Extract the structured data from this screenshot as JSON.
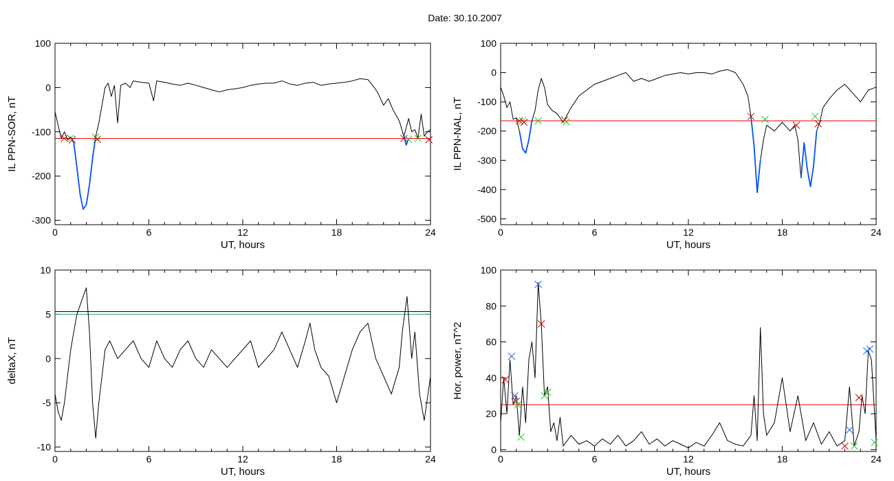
{
  "figure": {
    "title": "Date:  30.10.2007"
  },
  "chart_data": [
    {
      "id": "ppn-sor",
      "type": "line",
      "xlabel": "UT, hours",
      "ylabel": "IL PPN-SOR, nT",
      "xlim": [
        0,
        24
      ],
      "ylim": [
        -310,
        100
      ],
      "xticks": [
        0,
        6,
        12,
        18,
        24
      ],
      "yticks": [
        100,
        0,
        -100,
        -200,
        -300
      ],
      "threshold": {
        "value": -115,
        "color": "#ee0000"
      },
      "series": [
        {
          "color": "#000000",
          "x": [
            0,
            0.2,
            0.4,
            0.6,
            0.8,
            1.0,
            1.2,
            1.4,
            1.6,
            1.8,
            2.0,
            2.2,
            2.4,
            2.6,
            2.8,
            3.0,
            3.2,
            3.4,
            3.6,
            3.8,
            4.0,
            4.2,
            4.5,
            4.8,
            5.0,
            5.5,
            6.0,
            6.3,
            6.5,
            7.0,
            7.5,
            8.0,
            8.5,
            9.0,
            9.5,
            10.0,
            10.5,
            11.0,
            11.5,
            12.0,
            12.5,
            13.0,
            13.5,
            14.0,
            14.5,
            15.0,
            15.5,
            16.0,
            16.5,
            17.0,
            17.5,
            18.0,
            18.5,
            19.0,
            19.5,
            20.0,
            20.3,
            20.6,
            21.0,
            21.3,
            21.6,
            22.0,
            22.3,
            22.6,
            22.8,
            23.0,
            23.2,
            23.4,
            23.6,
            23.8,
            24.0
          ],
          "y": [
            -55,
            -85,
            -115,
            -100,
            -118,
            -112,
            -125,
            -180,
            -240,
            -275,
            -265,
            -220,
            -160,
            -110,
            -80,
            -40,
            0,
            10,
            -20,
            5,
            -80,
            5,
            10,
            0,
            15,
            12,
            10,
            -30,
            15,
            12,
            8,
            5,
            10,
            5,
            0,
            -5,
            -10,
            -5,
            -3,
            0,
            5,
            8,
            10,
            10,
            15,
            8,
            5,
            10,
            12,
            5,
            8,
            10,
            12,
            15,
            20,
            18,
            5,
            -10,
            -40,
            -25,
            -50,
            -75,
            -110,
            -70,
            -100,
            -95,
            -115,
            -60,
            -110,
            -100,
            -95
          ]
        },
        {
          "color": "#0050ff",
          "segments": [
            {
              "x": [
                1.0,
                1.2,
                1.4,
                1.6,
                1.8,
                2.0,
                2.2,
                2.4,
                2.6
              ],
              "y": [
                -112,
                -125,
                -180,
                -240,
                -275,
                -265,
                -220,
                -160,
                -110
              ]
            },
            {
              "x": [
                22.3,
                22.45,
                22.6
              ],
              "y": [
                -110,
                -130,
                -115
              ]
            }
          ]
        }
      ],
      "markers": [
        {
          "x": 0.6,
          "y": -115,
          "color": "#cc0000"
        },
        {
          "x": 1.0,
          "y": -115,
          "color": "#22cc22"
        },
        {
          "x": 1.1,
          "y": -118,
          "color": "#cc0000"
        },
        {
          "x": 2.6,
          "y": -112,
          "color": "#22cc22"
        },
        {
          "x": 2.7,
          "y": -117,
          "color": "#cc0000"
        },
        {
          "x": 22.3,
          "y": -115,
          "color": "#cc0000"
        },
        {
          "x": 22.6,
          "y": -117,
          "color": "#22cc22"
        },
        {
          "x": 23.2,
          "y": -115,
          "color": "#22cc22"
        },
        {
          "x": 23.9,
          "y": -118,
          "color": "#cc0000"
        }
      ]
    },
    {
      "id": "ppn-nal",
      "type": "line",
      "xlabel": "UT, hours",
      "ylabel": "IL PPN-NAL, nT",
      "xlim": [
        0,
        24
      ],
      "ylim": [
        -520,
        100
      ],
      "xticks": [
        0,
        6,
        12,
        18,
        24
      ],
      "yticks": [
        100,
        0,
        -100,
        -200,
        -300,
        -400,
        -500
      ],
      "threshold": {
        "value": -165,
        "color": "#ee0000"
      },
      "series": [
        {
          "color": "#000000",
          "x": [
            0,
            0.2,
            0.4,
            0.6,
            0.8,
            1.0,
            1.2,
            1.4,
            1.6,
            1.8,
            2.0,
            2.2,
            2.4,
            2.6,
            2.8,
            3.0,
            3.3,
            3.6,
            4.0,
            4.2,
            4.5,
            5.0,
            5.5,
            6.0,
            6.5,
            7.0,
            7.5,
            8.0,
            8.5,
            9.0,
            9.5,
            10.0,
            10.5,
            11.0,
            11.5,
            12.0,
            12.5,
            13.0,
            13.5,
            14.0,
            14.5,
            15.0,
            15.5,
            15.8,
            16.0,
            16.2,
            16.4,
            16.6,
            16.8,
            17.0,
            17.5,
            18.0,
            18.5,
            18.8,
            19.0,
            19.2,
            19.4,
            19.6,
            19.8,
            20.0,
            20.2,
            20.4,
            20.6,
            21.0,
            21.5,
            22.0,
            22.5,
            23.0,
            23.5,
            24.0
          ],
          "y": [
            -50,
            -80,
            -120,
            -100,
            -160,
            -155,
            -200,
            -260,
            -275,
            -230,
            -165,
            -130,
            -60,
            -20,
            -50,
            -110,
            -130,
            -140,
            -170,
            -150,
            -120,
            -80,
            -60,
            -40,
            -30,
            -20,
            -10,
            0,
            -30,
            -20,
            -30,
            -20,
            -10,
            -5,
            0,
            -5,
            0,
            0,
            -5,
            5,
            10,
            0,
            -40,
            -80,
            -150,
            -250,
            -410,
            -300,
            -230,
            -180,
            -200,
            -170,
            -200,
            -180,
            -230,
            -360,
            -240,
            -330,
            -390,
            -320,
            -200,
            -170,
            -120,
            -90,
            -60,
            -40,
            -70,
            -100,
            -60,
            -50
          ]
        },
        {
          "color": "#0050ff",
          "segments": [
            {
              "x": [
                1.2,
                1.4,
                1.6,
                1.8,
                2.0
              ],
              "y": [
                -200,
                -260,
                -275,
                -230,
                -165
              ]
            },
            {
              "x": [
                16.0,
                16.2,
                16.4,
                16.6
              ],
              "y": [
                -150,
                -250,
                -410,
                -300
              ]
            },
            {
              "x": [
                19.2,
                19.4,
                19.6,
                19.8,
                20.0,
                20.2
              ],
              "y": [
                -360,
                -240,
                -330,
                -390,
                -320,
                -200
              ]
            }
          ]
        }
      ],
      "markers": [
        {
          "x": 1.2,
          "y": -165,
          "color": "#cc0000"
        },
        {
          "x": 1.4,
          "y": -165,
          "color": "#22cc22"
        },
        {
          "x": 1.5,
          "y": -170,
          "color": "#cc0000"
        },
        {
          "x": 2.4,
          "y": -165,
          "color": "#22cc22"
        },
        {
          "x": 4.1,
          "y": -162,
          "color": "#cc0000"
        },
        {
          "x": 4.2,
          "y": -168,
          "color": "#22cc22"
        },
        {
          "x": 16.0,
          "y": -150,
          "color": "#cc0000"
        },
        {
          "x": 16.9,
          "y": -160,
          "color": "#22cc22"
        },
        {
          "x": 18.9,
          "y": -180,
          "color": "#cc0000"
        },
        {
          "x": 20.1,
          "y": -150,
          "color": "#22cc22"
        },
        {
          "x": 20.3,
          "y": -175,
          "color": "#cc0000"
        }
      ]
    },
    {
      "id": "deltax",
      "type": "line",
      "xlabel": "UT, hours",
      "ylabel": "deltaX, nT",
      "xlim": [
        0,
        24
      ],
      "ylim": [
        -10.5,
        10
      ],
      "xticks": [
        0,
        6,
        12,
        18,
        24
      ],
      "yticks": [
        10,
        5,
        0,
        -5,
        -10
      ],
      "thresholds": [
        {
          "value": 5.3,
          "color": "#000000"
        },
        {
          "value": 5.0,
          "color": "#2a9d8f"
        }
      ],
      "series": [
        {
          "color": "#000000",
          "x": [
            0,
            0.2,
            0.4,
            0.6,
            0.8,
            1.0,
            1.2,
            1.4,
            1.6,
            1.8,
            2.0,
            2.2,
            2.4,
            2.6,
            2.8,
            3.0,
            3.2,
            3.5,
            4.0,
            4.5,
            5.0,
            5.5,
            6.0,
            6.5,
            7.0,
            7.5,
            8.0,
            8.5,
            9.0,
            9.5,
            10.0,
            10.5,
            11.0,
            11.5,
            12.0,
            12.5,
            13.0,
            13.5,
            14.0,
            14.5,
            15.0,
            15.5,
            16.0,
            16.3,
            16.6,
            17.0,
            17.5,
            18.0,
            18.5,
            19.0,
            19.5,
            20.0,
            20.5,
            21.0,
            21.5,
            22.0,
            22.2,
            22.5,
            22.8,
            23.0,
            23.3,
            23.6,
            24.0
          ],
          "y": [
            -4,
            -6,
            -7,
            -5,
            -2,
            1,
            3,
            5,
            6,
            7,
            8,
            3,
            -5,
            -9,
            -5,
            -2,
            1,
            2,
            0,
            1,
            2,
            0,
            -1,
            2,
            0,
            -1,
            1,
            2,
            0,
            -1,
            1,
            0,
            -1,
            0,
            1,
            2,
            -1,
            0,
            1,
            3,
            1,
            -1,
            2,
            4,
            1,
            -1,
            -2,
            -5,
            -2,
            1,
            3,
            4,
            0,
            -2,
            -4,
            -1,
            3,
            7,
            0,
            3,
            -4,
            -7,
            -2
          ]
        }
      ]
    },
    {
      "id": "hor-power",
      "type": "line",
      "xlabel": "UT, hours",
      "ylabel": "Hor. power, nT^2",
      "xlim": [
        0,
        24
      ],
      "ylim": [
        -1,
        100
      ],
      "xticks": [
        0,
        6,
        12,
        18,
        24
      ],
      "yticks": [
        0,
        20,
        40,
        60,
        80,
        100
      ],
      "threshold": {
        "value": 25,
        "color": "#ee0000"
      },
      "series": [
        {
          "color": "#000000",
          "x": [
            0,
            0.2,
            0.4,
            0.6,
            0.8,
            1.0,
            1.2,
            1.4,
            1.6,
            1.8,
            2.0,
            2.2,
            2.4,
            2.6,
            2.8,
            3.0,
            3.2,
            3.4,
            3.6,
            3.8,
            4.0,
            4.5,
            5.0,
            5.5,
            6.0,
            6.5,
            7.0,
            7.5,
            8.0,
            8.5,
            9.0,
            9.5,
            10.0,
            10.5,
            11.0,
            11.5,
            12.0,
            12.5,
            13.0,
            13.5,
            14.0,
            14.5,
            15.0,
            15.5,
            16.0,
            16.2,
            16.4,
            16.6,
            16.8,
            17.0,
            17.5,
            18.0,
            18.5,
            19.0,
            19.5,
            20.0,
            20.5,
            21.0,
            21.5,
            22.0,
            22.3,
            22.6,
            22.9,
            23.1,
            23.3,
            23.5,
            23.7,
            24.0
          ],
          "y": [
            15,
            40,
            20,
            50,
            25,
            30,
            8,
            35,
            15,
            50,
            60,
            40,
            93,
            70,
            30,
            35,
            10,
            15,
            5,
            18,
            2,
            8,
            3,
            5,
            2,
            6,
            3,
            8,
            2,
            5,
            10,
            3,
            6,
            2,
            5,
            3,
            1,
            4,
            2,
            8,
            15,
            5,
            3,
            2,
            8,
            30,
            5,
            68,
            20,
            8,
            15,
            40,
            10,
            30,
            5,
            15,
            3,
            10,
            2,
            5,
            35,
            2,
            10,
            30,
            20,
            55,
            50,
            5
          ]
        }
      ],
      "markers": [
        {
          "x": 0.3,
          "y": 39,
          "color": "#cc0000"
        },
        {
          "x": 0.7,
          "y": 52,
          "color": "#2266dd"
        },
        {
          "x": 0.9,
          "y": 30,
          "color": "#2266dd"
        },
        {
          "x": 1.0,
          "y": 27,
          "color": "#cc0000"
        },
        {
          "x": 1.1,
          "y": 25,
          "color": "#22cc22"
        },
        {
          "x": 1.3,
          "y": 7,
          "color": "#22cc22"
        },
        {
          "x": 2.4,
          "y": 92,
          "color": "#2266dd"
        },
        {
          "x": 2.6,
          "y": 70,
          "color": "#cc0000"
        },
        {
          "x": 2.8,
          "y": 30,
          "color": "#22cc22"
        },
        {
          "x": 3.0,
          "y": 32,
          "color": "#22cc22"
        },
        {
          "x": 22.0,
          "y": 2,
          "color": "#cc0000"
        },
        {
          "x": 22.3,
          "y": 11,
          "color": "#2266dd"
        },
        {
          "x": 22.6,
          "y": 2,
          "color": "#22cc22"
        },
        {
          "x": 22.9,
          "y": 29,
          "color": "#cc0000"
        },
        {
          "x": 23.4,
          "y": 55,
          "color": "#2266dd"
        },
        {
          "x": 23.6,
          "y": 56,
          "color": "#2266dd"
        },
        {
          "x": 23.9,
          "y": 4,
          "color": "#22cc22"
        }
      ]
    }
  ]
}
